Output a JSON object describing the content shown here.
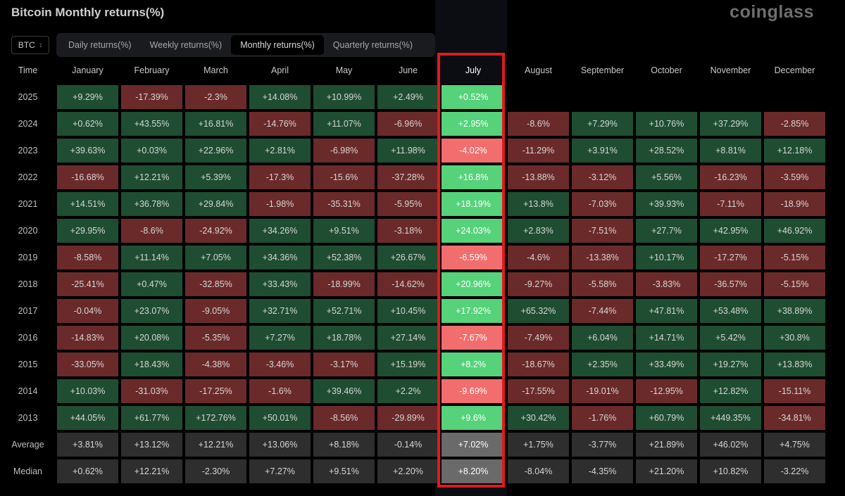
{
  "header": {
    "title": "Bitcoin Monthly returns(%)",
    "logo": "coinglass"
  },
  "asset_select": {
    "value": "BTC",
    "icon": "chevron-updown-icon"
  },
  "tabs": [
    {
      "label": "Daily returns(%)",
      "active": false
    },
    {
      "label": "Weekly returns(%)",
      "active": false
    },
    {
      "label": "Monthly returns(%)",
      "active": true
    },
    {
      "label": "Quarterly returns(%)",
      "active": false
    }
  ],
  "table": {
    "time_header": "Time",
    "highlighted_month": "July",
    "months": [
      "January",
      "February",
      "March",
      "April",
      "May",
      "June",
      "July",
      "August",
      "September",
      "October",
      "November",
      "December"
    ],
    "rows": [
      {
        "label": "2025",
        "values": [
          "+9.29%",
          "-17.39%",
          "-2.3%",
          "+14.08%",
          "+10.99%",
          "+2.49%",
          "+0.52%",
          "",
          "",
          "",
          "",
          ""
        ]
      },
      {
        "label": "2024",
        "values": [
          "+0.62%",
          "+43.55%",
          "+16.81%",
          "-14.76%",
          "+11.07%",
          "-6.96%",
          "+2.95%",
          "-8.6%",
          "+7.29%",
          "+10.76%",
          "+37.29%",
          "-2.85%"
        ]
      },
      {
        "label": "2023",
        "values": [
          "+39.63%",
          "+0.03%",
          "+22.96%",
          "+2.81%",
          "-6.98%",
          "+11.98%",
          "-4.02%",
          "-11.29%",
          "+3.91%",
          "+28.52%",
          "+8.81%",
          "+12.18%"
        ]
      },
      {
        "label": "2022",
        "values": [
          "-16.68%",
          "+12.21%",
          "+5.39%",
          "-17.3%",
          "-15.6%",
          "-37.28%",
          "+16.8%",
          "-13.88%",
          "-3.12%",
          "+5.56%",
          "-16.23%",
          "-3.59%"
        ]
      },
      {
        "label": "2021",
        "values": [
          "+14.51%",
          "+36.78%",
          "+29.84%",
          "-1.98%",
          "-35.31%",
          "-5.95%",
          "+18.19%",
          "+13.8%",
          "-7.03%",
          "+39.93%",
          "-7.11%",
          "-18.9%"
        ]
      },
      {
        "label": "2020",
        "values": [
          "+29.95%",
          "-8.6%",
          "-24.92%",
          "+34.26%",
          "+9.51%",
          "-3.18%",
          "+24.03%",
          "+2.83%",
          "-7.51%",
          "+27.7%",
          "+42.95%",
          "+46.92%"
        ]
      },
      {
        "label": "2019",
        "values": [
          "-8.58%",
          "+11.14%",
          "+7.05%",
          "+34.36%",
          "+52.38%",
          "+26.67%",
          "-6.59%",
          "-4.6%",
          "-13.38%",
          "+10.17%",
          "-17.27%",
          "-5.15%"
        ]
      },
      {
        "label": "2018",
        "values": [
          "-25.41%",
          "+0.47%",
          "-32.85%",
          "+33.43%",
          "-18.99%",
          "-14.62%",
          "+20.96%",
          "-9.27%",
          "-5.58%",
          "-3.83%",
          "-36.57%",
          "-5.15%"
        ]
      },
      {
        "label": "2017",
        "values": [
          "-0.04%",
          "+23.07%",
          "-9.05%",
          "+32.71%",
          "+52.71%",
          "+10.45%",
          "+17.92%",
          "+65.32%",
          "-7.44%",
          "+47.81%",
          "+53.48%",
          "+38.89%"
        ]
      },
      {
        "label": "2016",
        "values": [
          "-14.83%",
          "+20.08%",
          "-5.35%",
          "+7.27%",
          "+18.78%",
          "+27.14%",
          "-7.67%",
          "-7.49%",
          "+6.04%",
          "+14.71%",
          "+5.42%",
          "+30.8%"
        ]
      },
      {
        "label": "2015",
        "values": [
          "-33.05%",
          "+18.43%",
          "-4.38%",
          "-3.46%",
          "-3.17%",
          "+15.19%",
          "+8.2%",
          "-18.67%",
          "+2.35%",
          "+33.49%",
          "+19.27%",
          "+13.83%"
        ]
      },
      {
        "label": "2014",
        "values": [
          "+10.03%",
          "-31.03%",
          "-17.25%",
          "-1.6%",
          "+39.46%",
          "+2.2%",
          "-9.69%",
          "-17.55%",
          "-19.01%",
          "-12.95%",
          "+12.82%",
          "-15.11%"
        ]
      },
      {
        "label": "2013",
        "values": [
          "+44.05%",
          "+61.77%",
          "+172.76%",
          "+50.01%",
          "-8.56%",
          "-29.89%",
          "+9.6%",
          "+30.42%",
          "-1.76%",
          "+60.79%",
          "+449.35%",
          "-34.81%"
        ]
      },
      {
        "label": "Average",
        "stat": true,
        "values": [
          "+3.81%",
          "+13.12%",
          "+12.21%",
          "+13.06%",
          "+8.18%",
          "-0.14%",
          "+7.02%",
          "+1.75%",
          "-3.77%",
          "+21.89%",
          "+46.02%",
          "+4.75%"
        ]
      },
      {
        "label": "Median",
        "stat": true,
        "values": [
          "+0.62%",
          "+12.21%",
          "-2.30%",
          "+7.27%",
          "+9.51%",
          "+2.20%",
          "+8.20%",
          "-8.04%",
          "-4.35%",
          "+21.20%",
          "+10.82%",
          "-3.22%"
        ]
      }
    ]
  },
  "colors": {
    "positive": "#1f4d32",
    "negative": "#6b2a2a",
    "stat": "#2e2e2e",
    "july_positive": "#55d27a",
    "july_negative": "#f26e6e",
    "july_stat": "#6a6a6a",
    "highlight_border": "#e0191f"
  }
}
